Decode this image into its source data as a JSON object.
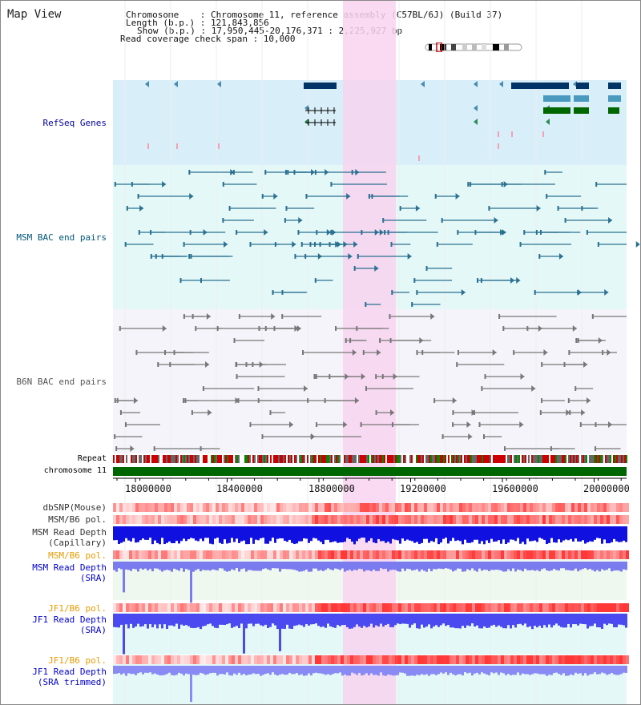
{
  "title": "Map View",
  "info": {
    "chromosome_line": "Chromosome    : Chromosome 11, reference assembly (C57BL/6J) (Build 37)",
    "length_line": "Length (b.p.) : 121,843,856",
    "show_line": "Show (b.p.) : 17,950,445-20,176,371 : 2,225,927 bp",
    "span_line": "Read coverage check span : 10,000"
  },
  "tracks": {
    "refseq": "RefSeq Genes",
    "msm_bac": "MSM BAC end pairs",
    "b6n_bac": "B6N BAC end pairs",
    "repeat": "Repeat",
    "chromosome": "chromosome 11",
    "dbsnp": "dbSNP(Mouse)",
    "msm_b6_pol_1": "MSM/B6 pol.",
    "msm_read_depth_cap_1": "MSM Read Depth",
    "msm_read_depth_cap_2": "(Capillary)",
    "msm_b6_pol_2": "MSM/B6 pol.",
    "msm_read_depth_sra_1": "MSM Read Depth",
    "msm_read_depth_sra_2": "(SRA)",
    "jf1_b6_pol_1": "JF1/B6 pol.",
    "jf1_read_depth_1": "JF1 Read Depth",
    "jf1_read_depth_2": "(SRA)",
    "jf1_b6_pol_2": "JF1/B6 pol.",
    "jf1_trim_1": "JF1 Read Depth",
    "jf1_trim_2": "(SRA trimmed)"
  },
  "axis": {
    "ticks": [
      "18000000",
      "18400000",
      "18800000",
      "19200000",
      "19600000",
      "20000000"
    ]
  },
  "colors": {
    "refseq_label": "#000099",
    "msm_bac_label": "#005577",
    "b6n_label": "#555555",
    "pol_orange": "#e89a00",
    "depth_blue": "#0000cc",
    "highlight": "#f8d4f0",
    "gene_navy": "#003366",
    "gene_teal": "#4a9abf",
    "gene_green": "#006600",
    "chrom_green": "#006600"
  }
}
